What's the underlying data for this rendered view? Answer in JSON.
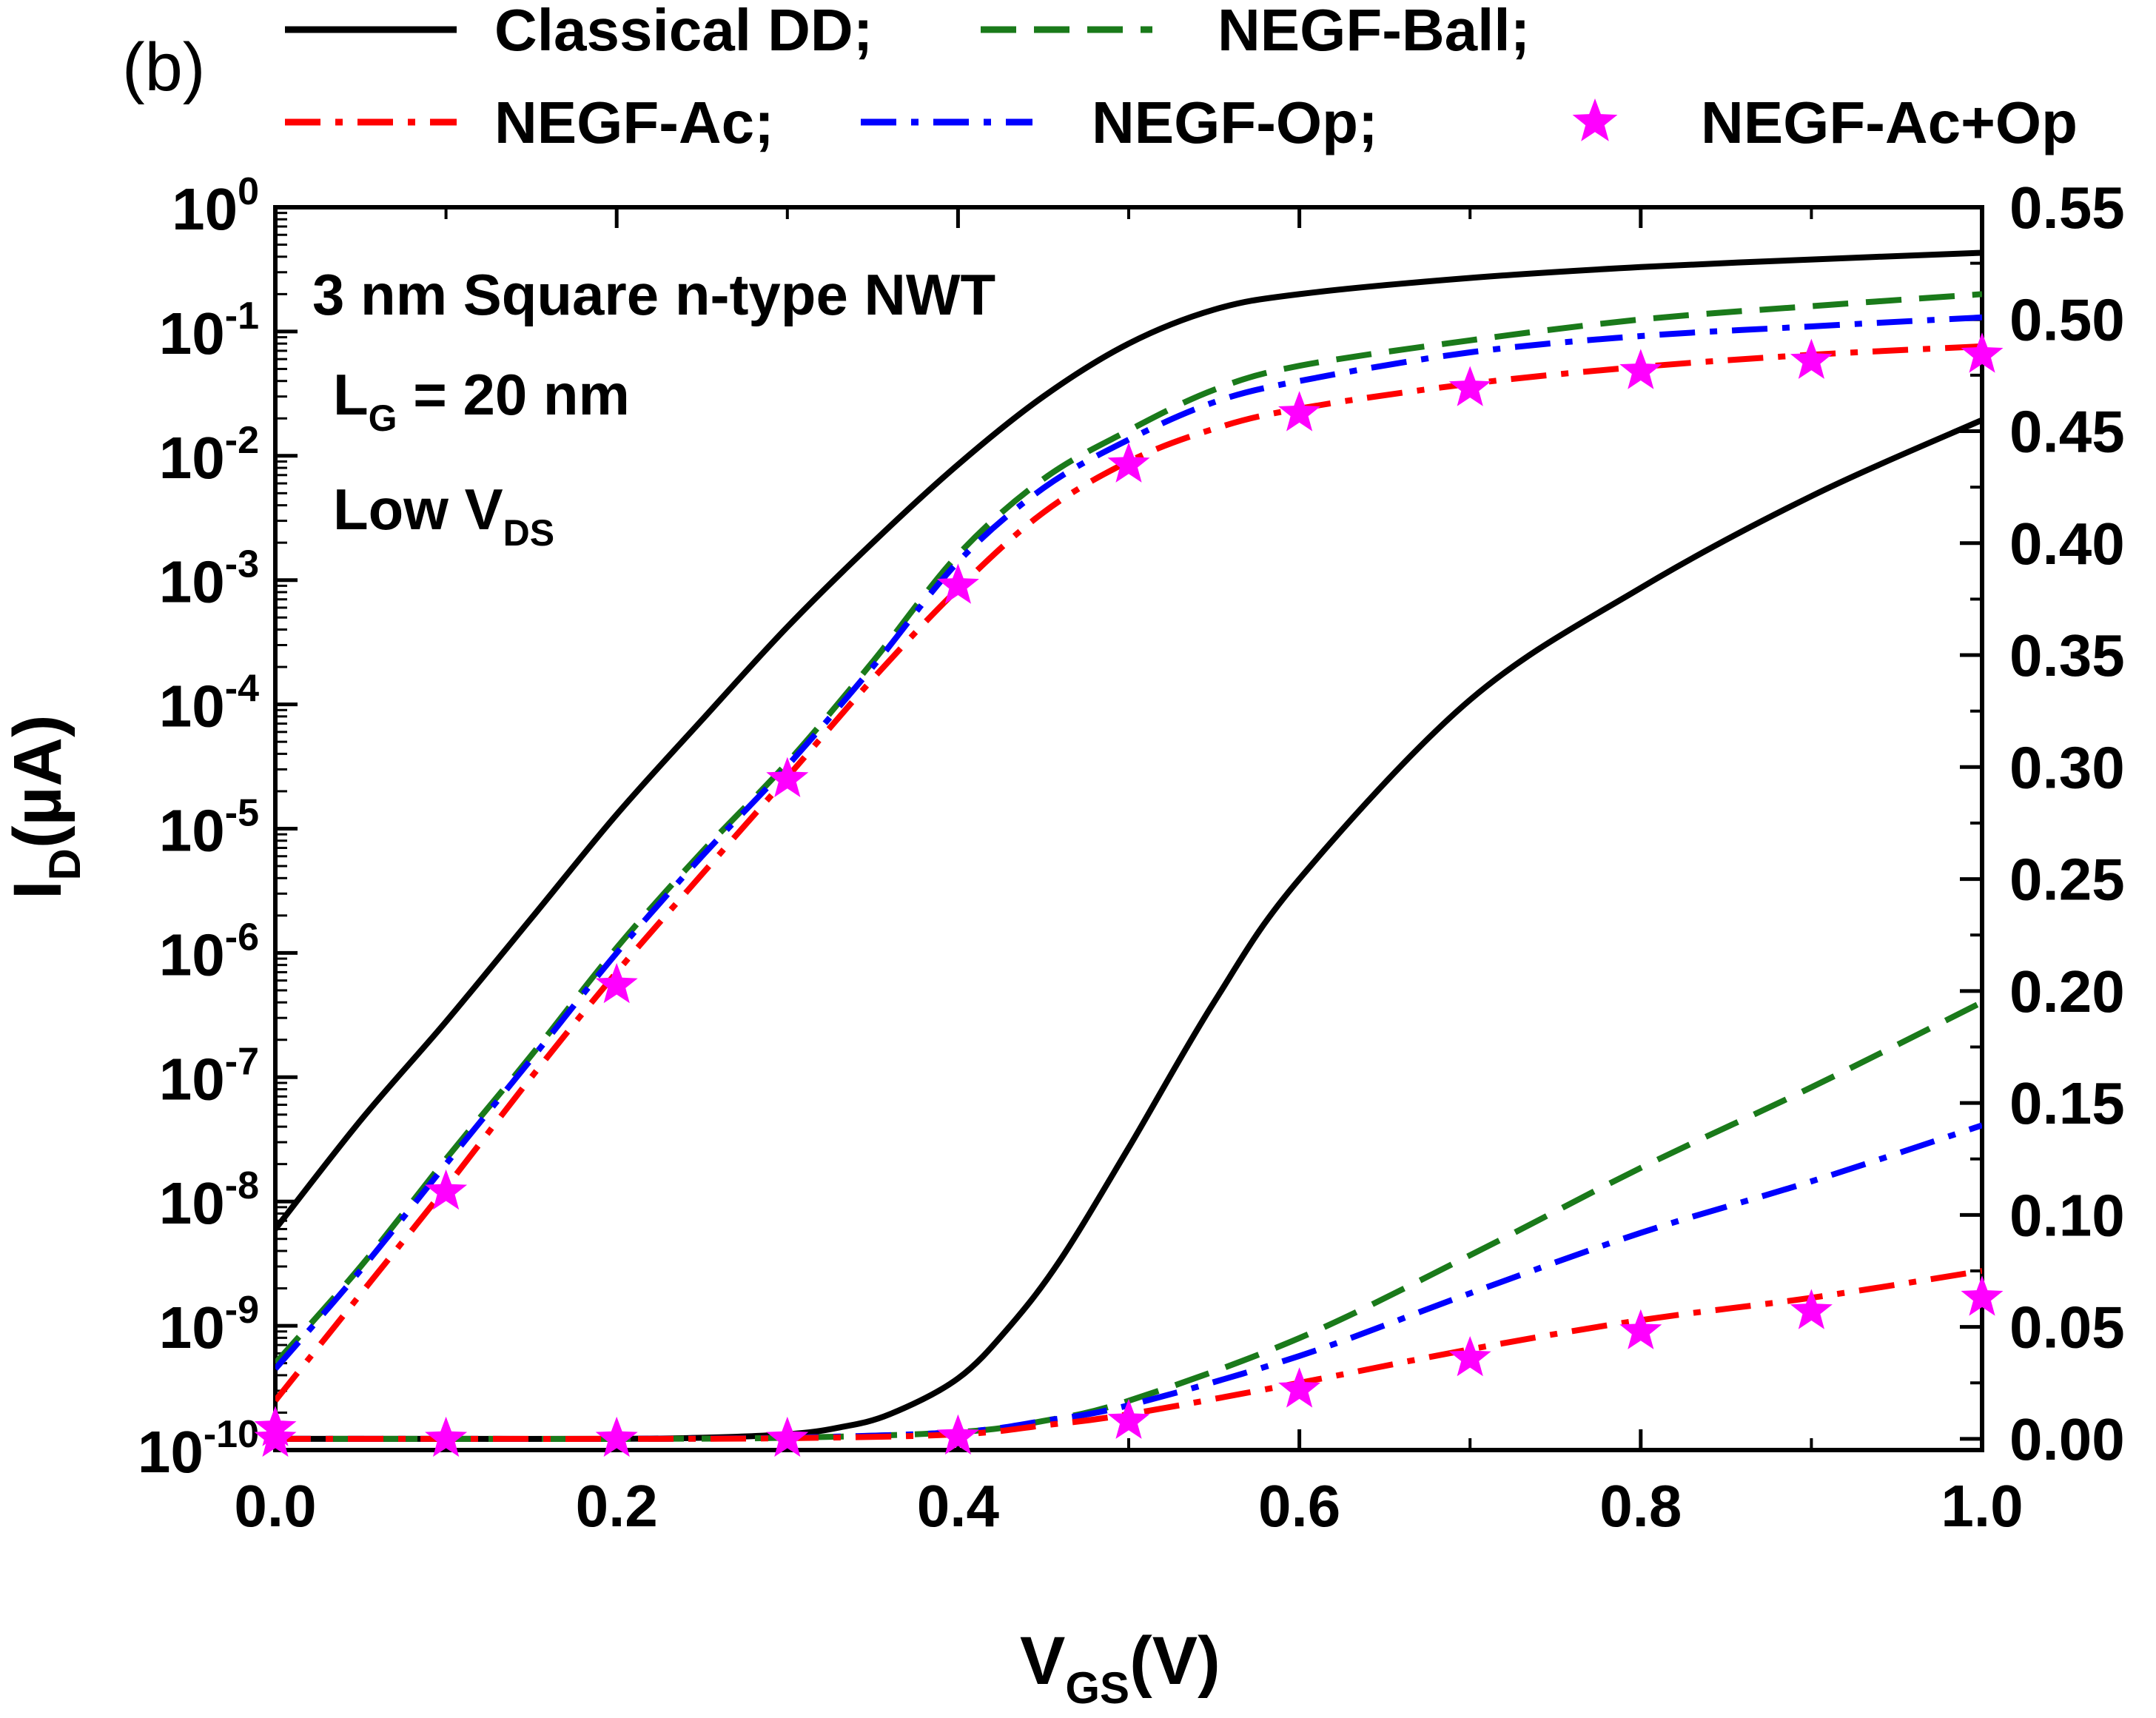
{
  "panel_label": "(b)",
  "annotations": {
    "line1": "3 nm Square n-type NWT",
    "line2_main": "L",
    "line2_sub": "G",
    "line2_rest": " = 20 nm",
    "line3_main": "Low V",
    "line3_sub": "DS"
  },
  "legend": [
    {
      "label": "Classical DD;",
      "color": "#000000",
      "style": "solid"
    },
    {
      "label": "NEGF-Ball;",
      "color": "#1a7a1a",
      "style": "dash"
    },
    {
      "label": "NEGF-Ac;",
      "color": "#ff0000",
      "style": "dashdot"
    },
    {
      "label": "NEGF-Op;",
      "color": "#0000ff",
      "style": "dashdot"
    },
    {
      "label": "NEGF-Ac+Op",
      "color": "#ff00ff",
      "style": "star"
    }
  ],
  "chart_data": {
    "type": "line",
    "title": "",
    "xlabel_main": "V",
    "xlabel_sub": "GS",
    "xlabel_rest": "(V)",
    "ylabel_left_main": "I",
    "ylabel_left_sub": "D",
    "ylabel_left_rest": "(µA)",
    "xlim": [
      0.0,
      1.0
    ],
    "ylim_left_log": [
      -10,
      0
    ],
    "ylim_right": [
      -0.005,
      0.55
    ],
    "x_ticks": [
      "0.0",
      "0.2",
      "0.4",
      "0.6",
      "0.8",
      "1.0"
    ],
    "y_left_ticks": [
      {
        "base": "10",
        "exp": "0"
      },
      {
        "base": "10",
        "exp": "-1"
      },
      {
        "base": "10",
        "exp": "-2"
      },
      {
        "base": "10",
        "exp": "-3"
      },
      {
        "base": "10",
        "exp": "-4"
      },
      {
        "base": "10",
        "exp": "-5"
      },
      {
        "base": "10",
        "exp": "-6"
      },
      {
        "base": "10",
        "exp": "-7"
      },
      {
        "base": "10",
        "exp": "-8"
      },
      {
        "base": "10",
        "exp": "-9"
      },
      {
        "base": "10",
        "exp": "-10"
      }
    ],
    "y_right_ticks": [
      "0.00",
      "0.05",
      "0.10",
      "0.15",
      "0.20",
      "0.25",
      "0.30",
      "0.35",
      "0.40",
      "0.45",
      "0.50",
      "0.55"
    ],
    "log_series": [
      {
        "name": "Classical DD",
        "color": "#000000",
        "style": "solid",
        "x": [
          0.0,
          0.05,
          0.1,
          0.15,
          0.2,
          0.25,
          0.3,
          0.35,
          0.4,
          0.45,
          0.5,
          0.55,
          0.6,
          0.7,
          0.8,
          0.9,
          1.0
        ],
        "y": [
          6e-09,
          4.5e-08,
          2.8e-07,
          1.9e-06,
          1.3e-05,
          7.5e-05,
          0.00042,
          0.002,
          0.0085,
          0.03,
          0.08,
          0.15,
          0.2,
          0.27,
          0.33,
          0.38,
          0.43
        ]
      },
      {
        "name": "NEGF-Ball",
        "color": "#1a7a1a",
        "style": "dash",
        "x": [
          0.0,
          0.05,
          0.1,
          0.15,
          0.2,
          0.25,
          0.3,
          0.35,
          0.4,
          0.45,
          0.5,
          0.55,
          0.6,
          0.7,
          0.8,
          0.9,
          1.0
        ],
        "y": [
          5e-10,
          3e-09,
          2.2e-08,
          1.5e-07,
          1.1e-06,
          6.5e-06,
          3.4e-05,
          0.00022,
          0.0016,
          0.0065,
          0.016,
          0.034,
          0.053,
          0.085,
          0.125,
          0.16,
          0.2
        ]
      },
      {
        "name": "NEGF-Op",
        "color": "#0000ff",
        "style": "dashdot",
        "x": [
          0.0,
          0.05,
          0.1,
          0.15,
          0.2,
          0.25,
          0.3,
          0.35,
          0.4,
          0.45,
          0.5,
          0.55,
          0.6,
          0.7,
          0.8,
          0.9,
          1.0
        ],
        "y": [
          4.5e-10,
          2.8e-09,
          2e-08,
          1.4e-07,
          1e-06,
          6e-06,
          3.2e-05,
          0.0002,
          0.0014,
          0.0055,
          0.0135,
          0.027,
          0.04,
          0.068,
          0.092,
          0.11,
          0.13
        ]
      },
      {
        "name": "NEGF-Ac",
        "color": "#ff0000",
        "style": "dashdot",
        "x": [
          0.0,
          0.05,
          0.1,
          0.15,
          0.2,
          0.25,
          0.3,
          0.35,
          0.4,
          0.45,
          0.5,
          0.55,
          0.6,
          0.7,
          0.8,
          0.9,
          1.0
        ],
        "y": [
          2.5e-10,
          1.8e-09,
          1.3e-08,
          1e-07,
          7e-07,
          4.3e-06,
          2.6e-05,
          0.00016,
          0.00085,
          0.0035,
          0.009,
          0.0165,
          0.024,
          0.038,
          0.052,
          0.065,
          0.076
        ]
      }
    ],
    "linear_series": [
      {
        "name": "Classical DD",
        "color": "#000000",
        "style": "solid",
        "x": [
          0.0,
          0.1,
          0.2,
          0.25,
          0.3,
          0.33,
          0.36,
          0.4,
          0.43,
          0.46,
          0.5,
          0.55,
          0.6,
          0.7,
          0.8,
          0.9,
          1.0
        ],
        "y": [
          0.0,
          0.0,
          0.0,
          0.0005,
          0.002,
          0.005,
          0.011,
          0.027,
          0.05,
          0.08,
          0.13,
          0.195,
          0.25,
          0.33,
          0.38,
          0.421,
          0.455
        ]
      },
      {
        "name": "NEGF-Ball",
        "color": "#1a7a1a",
        "style": "dash",
        "x": [
          0.0,
          0.1,
          0.2,
          0.3,
          0.4,
          0.45,
          0.5,
          0.6,
          0.7,
          0.8,
          0.9,
          1.0
        ],
        "y": [
          0.0,
          0.0,
          0.0,
          0.0005,
          0.003,
          0.008,
          0.017,
          0.045,
          0.082,
          0.121,
          0.157,
          0.195
        ]
      },
      {
        "name": "NEGF-Op",
        "color": "#0000ff",
        "style": "dashdot",
        "x": [
          0.0,
          0.1,
          0.2,
          0.3,
          0.4,
          0.45,
          0.5,
          0.6,
          0.7,
          0.8,
          0.9,
          1.0
        ],
        "y": [
          0.0,
          0.0,
          0.0,
          0.0005,
          0.003,
          0.008,
          0.015,
          0.037,
          0.065,
          0.092,
          0.115,
          0.14
        ]
      },
      {
        "name": "NEGF-Ac",
        "color": "#ff0000",
        "style": "dashdot",
        "x": [
          0.0,
          0.1,
          0.2,
          0.3,
          0.4,
          0.45,
          0.5,
          0.6,
          0.7,
          0.8,
          0.9,
          1.0
        ],
        "y": [
          0.0,
          0.0,
          0.0,
          0.0003,
          0.002,
          0.006,
          0.011,
          0.025,
          0.04,
          0.053,
          0.063,
          0.075
        ]
      }
    ],
    "star_series_log": {
      "name": "NEGF-Ac+Op",
      "color": "#ff00ff",
      "x": [
        0.0,
        0.1,
        0.2,
        0.3,
        0.4,
        0.5,
        0.6,
        0.7,
        0.8,
        0.9,
        1.0
      ],
      "y": [
        1.5e-10,
        1.2e-08,
        5.5e-07,
        2.5e-05,
        0.0009,
        0.0085,
        0.022,
        0.035,
        0.048,
        0.058,
        0.065
      ]
    },
    "star_series_linear": {
      "name": "NEGF-Ac+Op",
      "color": "#ff00ff",
      "x": [
        0.0,
        0.1,
        0.2,
        0.3,
        0.4,
        0.5,
        0.6,
        0.7,
        0.8,
        0.9,
        1.0
      ],
      "y": [
        0.0,
        0.0,
        0.0,
        0.0,
        0.001,
        0.008,
        0.022,
        0.036,
        0.048,
        0.057,
        0.063
      ]
    }
  }
}
